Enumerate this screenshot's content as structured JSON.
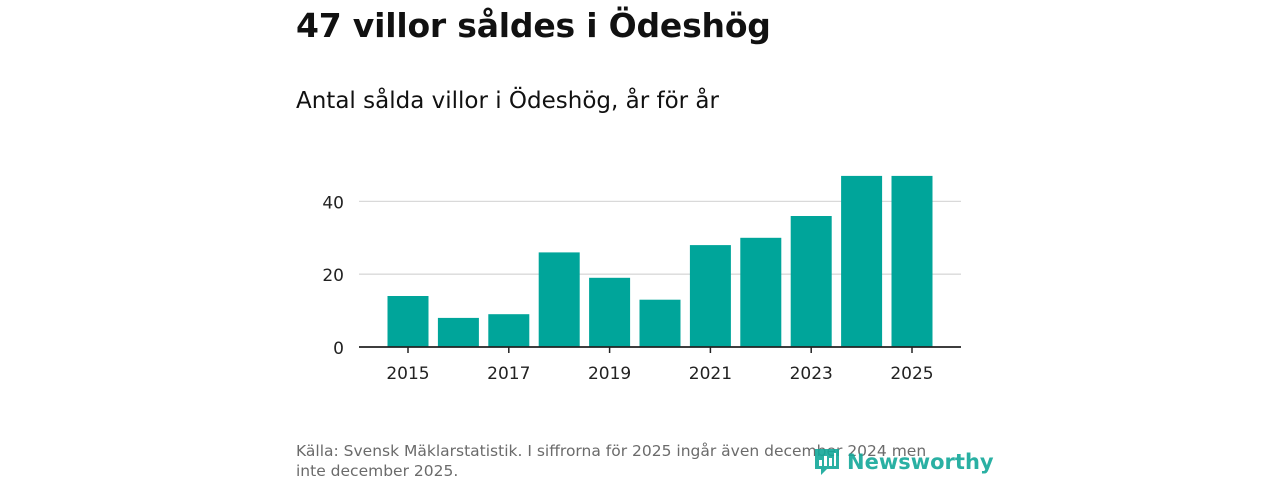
{
  "header": {
    "title": "47 villor såldes i Ödeshög",
    "subtitle": "Antal sålda villor i Ödeshög, år för år"
  },
  "footer": {
    "source": "Källa: Svensk Mäklarstatistik. I siffrorna för 2025 ingår även december 2024 men inte december 2025.",
    "logo_text": "Newsworthy"
  },
  "colors": {
    "bar": "#00a59a",
    "logo": "#14a89a",
    "grid": "#d9d9d9",
    "axis": "#222222"
  },
  "chart_data": {
    "type": "bar",
    "title": "Antal sålda villor i Ödeshög, år för år",
    "xlabel": "",
    "ylabel": "",
    "categories": [
      "2015",
      "2016",
      "2017",
      "2018",
      "2019",
      "2020",
      "2021",
      "2022",
      "2023",
      "2024",
      "2025"
    ],
    "values": [
      14,
      8,
      9,
      26,
      19,
      13,
      28,
      30,
      36,
      47,
      47
    ],
    "ylim": [
      0,
      50
    ],
    "yticks": [
      0,
      20,
      40
    ],
    "xtick_labels": [
      "2015",
      "2017",
      "2019",
      "2021",
      "2023",
      "2025"
    ],
    "grid": true,
    "legend": "none"
  }
}
